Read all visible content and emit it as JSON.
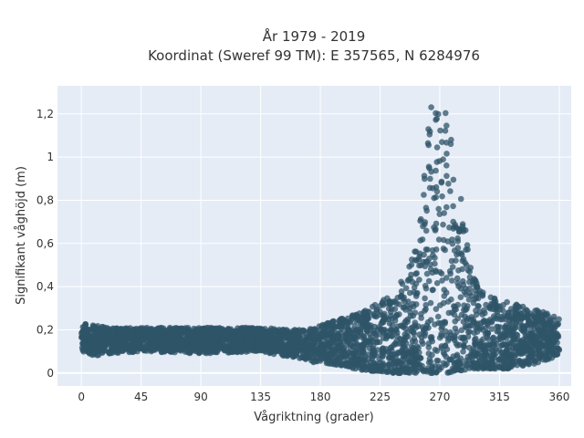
{
  "chart_data": {
    "type": "scatter",
    "title_line1": "År 1979 - 2019",
    "title_line2": "Koordinat (Sweref 99 TM): E 357565, N 6284976",
    "xlabel": "Vågriktning (grader)",
    "ylabel": "Signifikant våghöjd (m)",
    "xlim": [
      -18,
      369
    ],
    "ylim": [
      -0.06,
      1.33
    ],
    "xticks": [
      {
        "value": 0,
        "label": "0"
      },
      {
        "value": 45,
        "label": "45"
      },
      {
        "value": 90,
        "label": "90"
      },
      {
        "value": 135,
        "label": "135"
      },
      {
        "value": 180,
        "label": "180"
      },
      {
        "value": 225,
        "label": "225"
      },
      {
        "value": 270,
        "label": "270"
      },
      {
        "value": 315,
        "label": "315"
      },
      {
        "value": 360,
        "label": "360"
      }
    ],
    "yticks": [
      {
        "value": 0,
        "label": "0"
      },
      {
        "value": 0.2,
        "label": "0,2"
      },
      {
        "value": 0.4,
        "label": "0,4"
      },
      {
        "value": 0.6,
        "label": "0,6"
      },
      {
        "value": 0.8,
        "label": "0,8"
      },
      {
        "value": 1.0,
        "label": "1"
      },
      {
        "value": 1.2,
        "label": "1,2"
      }
    ],
    "grid": true,
    "marker_color": "#2f5468",
    "plot_bg": "#e5ecf6",
    "envelope": {
      "direction": [
        0,
        10,
        20,
        45,
        90,
        135,
        160,
        175,
        190,
        205,
        215,
        225,
        235,
        245,
        252,
        258,
        262,
        266,
        270,
        274,
        278,
        282,
        288,
        295,
        305,
        320,
        340,
        360
      ],
      "max_height": [
        0.24,
        0.22,
        0.21,
        0.21,
        0.21,
        0.21,
        0.2,
        0.21,
        0.24,
        0.27,
        0.3,
        0.33,
        0.37,
        0.46,
        0.6,
        0.9,
        1.2,
        1.28,
        1.26,
        1.22,
        1.15,
        0.98,
        0.72,
        0.45,
        0.36,
        0.33,
        0.3,
        0.26
      ],
      "min_height": [
        0.1,
        0.08,
        0.09,
        0.1,
        0.09,
        0.1,
        0.07,
        0.05,
        0.04,
        0.02,
        0.01,
        0.01,
        0.0,
        0.0,
        0.0,
        0.0,
        0.0,
        0.0,
        0.0,
        0.0,
        0.0,
        0.01,
        0.01,
        0.02,
        0.02,
        0.02,
        0.04,
        0.08
      ]
    }
  }
}
